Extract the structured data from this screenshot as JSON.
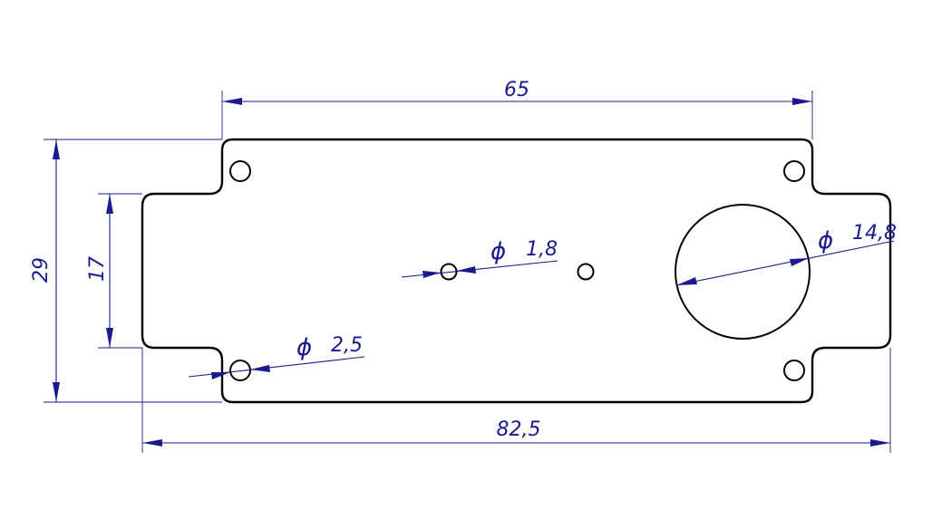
{
  "drawing": {
    "dimensions": {
      "top_width": "65",
      "overall_width": "82,5",
      "overall_height": "29",
      "tab_height": "17"
    },
    "diameters": {
      "small_hole": {
        "symbol": "ϕ",
        "value": "1,8"
      },
      "corner_hole": {
        "symbol": "ϕ",
        "value": "2,5"
      },
      "large_hole": {
        "symbol": "ϕ",
        "value": "14,8"
      }
    },
    "colors": {
      "outline": "#000000",
      "dimension": "#1a1a8c"
    }
  }
}
